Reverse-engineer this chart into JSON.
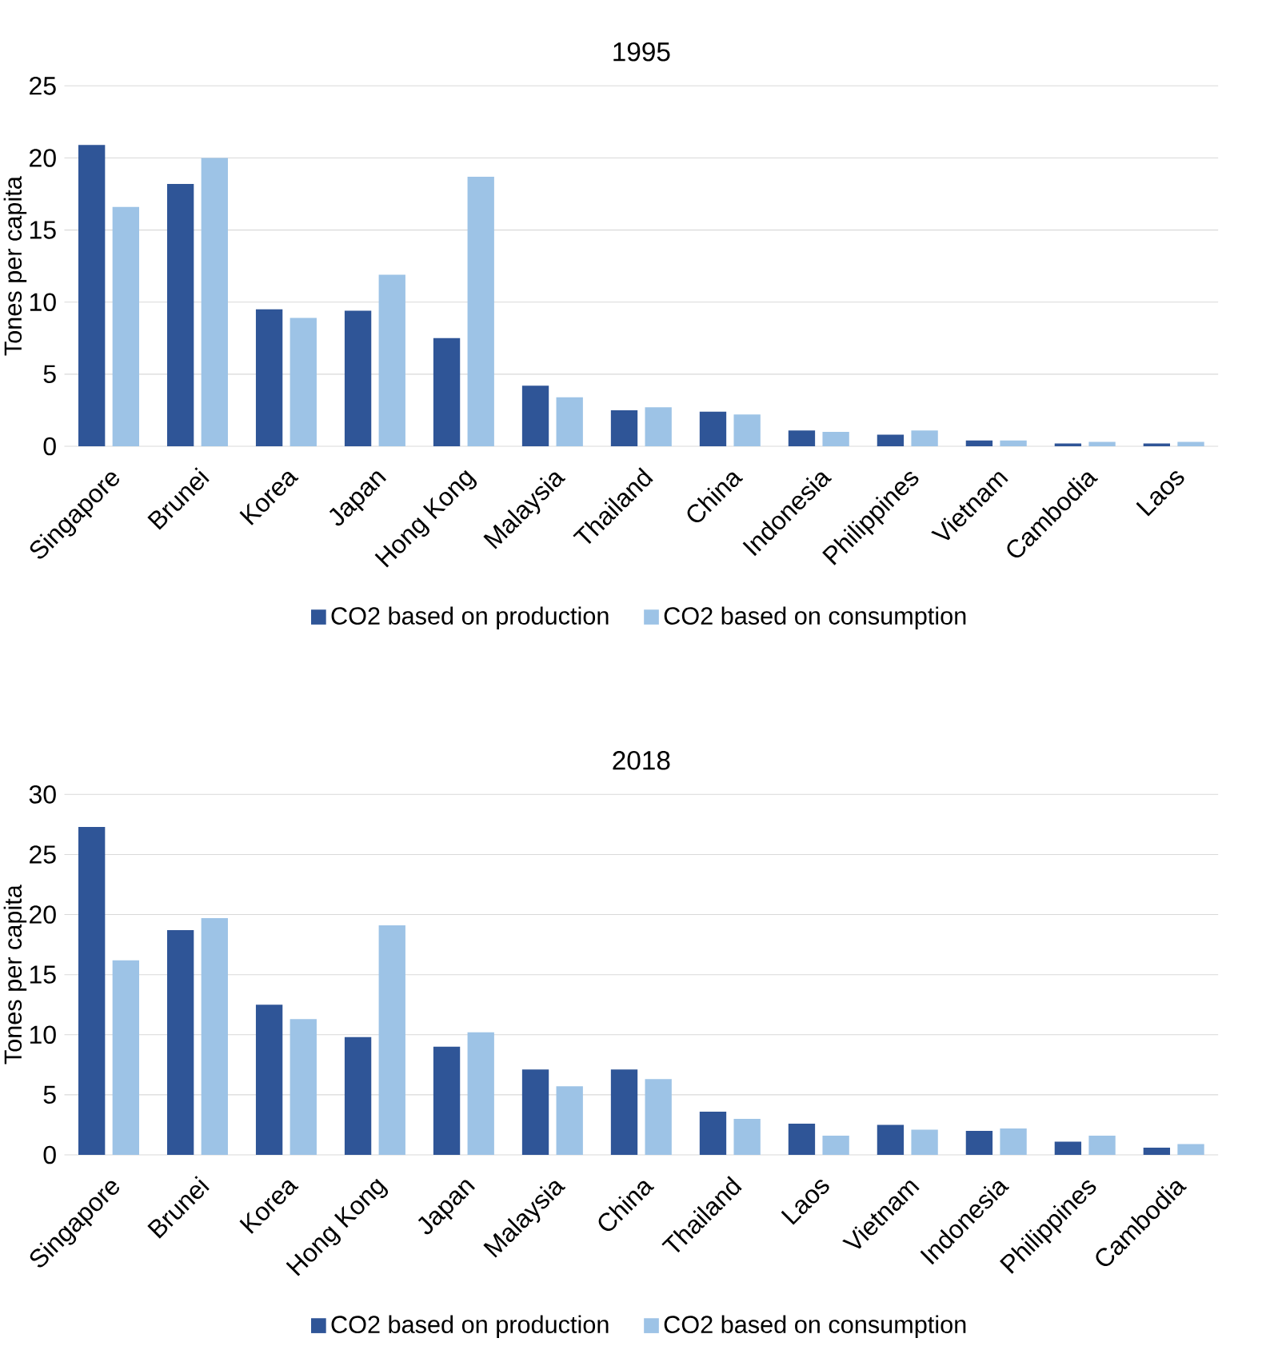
{
  "chart_data": [
    {
      "type": "bar",
      "title": "1995",
      "ylabel": "Tones per capita",
      "categories": [
        "Singapore",
        "Brunei",
        "Korea",
        "Japan",
        "Hong Kong",
        "Malaysia",
        "Thailand",
        "China",
        "Indonesia",
        "Philippines",
        "Vietnam",
        "Cambodia",
        "Laos"
      ],
      "series": [
        {
          "name": "CO2 based on production",
          "color": "#2f5597",
          "values": [
            20.9,
            18.2,
            9.5,
            9.4,
            7.5,
            4.2,
            2.5,
            2.4,
            1.1,
            0.8,
            0.4,
            0.2,
            0.2
          ]
        },
        {
          "name": "CO2 based on consumption",
          "color": "#9dc3e6",
          "values": [
            16.6,
            20.0,
            8.9,
            11.9,
            18.7,
            3.4,
            2.7,
            2.2,
            1.0,
            1.1,
            0.4,
            0.3,
            0.3
          ]
        }
      ],
      "ylim": [
        0,
        25
      ],
      "yticks": [
        0,
        5,
        10,
        15,
        20,
        25
      ],
      "grid": "y",
      "legend": "bottom"
    },
    {
      "type": "bar",
      "title": "2018",
      "ylabel": "Tones per capita",
      "categories": [
        "Singapore",
        "Brunei",
        "Korea",
        "Hong Kong",
        "Japan",
        "Malaysia",
        "China",
        "Thailand",
        "Laos",
        "Vietnam",
        "Indonesia",
        "Philippines",
        "Cambodia"
      ],
      "series": [
        {
          "name": "CO2 based on production",
          "color": "#2f5597",
          "values": [
            27.3,
            18.7,
            12.5,
            9.8,
            9.0,
            7.1,
            7.1,
            3.6,
            2.6,
            2.5,
            2.0,
            1.1,
            0.6
          ]
        },
        {
          "name": "CO2 based on consumption",
          "color": "#9dc3e6",
          "values": [
            16.2,
            19.7,
            11.3,
            19.1,
            10.2,
            5.7,
            6.3,
            3.0,
            1.6,
            2.1,
            2.2,
            1.6,
            0.9
          ]
        }
      ],
      "ylim": [
        0,
        30
      ],
      "yticks": [
        0,
        5,
        10,
        15,
        20,
        25,
        30
      ],
      "grid": "y",
      "legend": "bottom"
    }
  ]
}
